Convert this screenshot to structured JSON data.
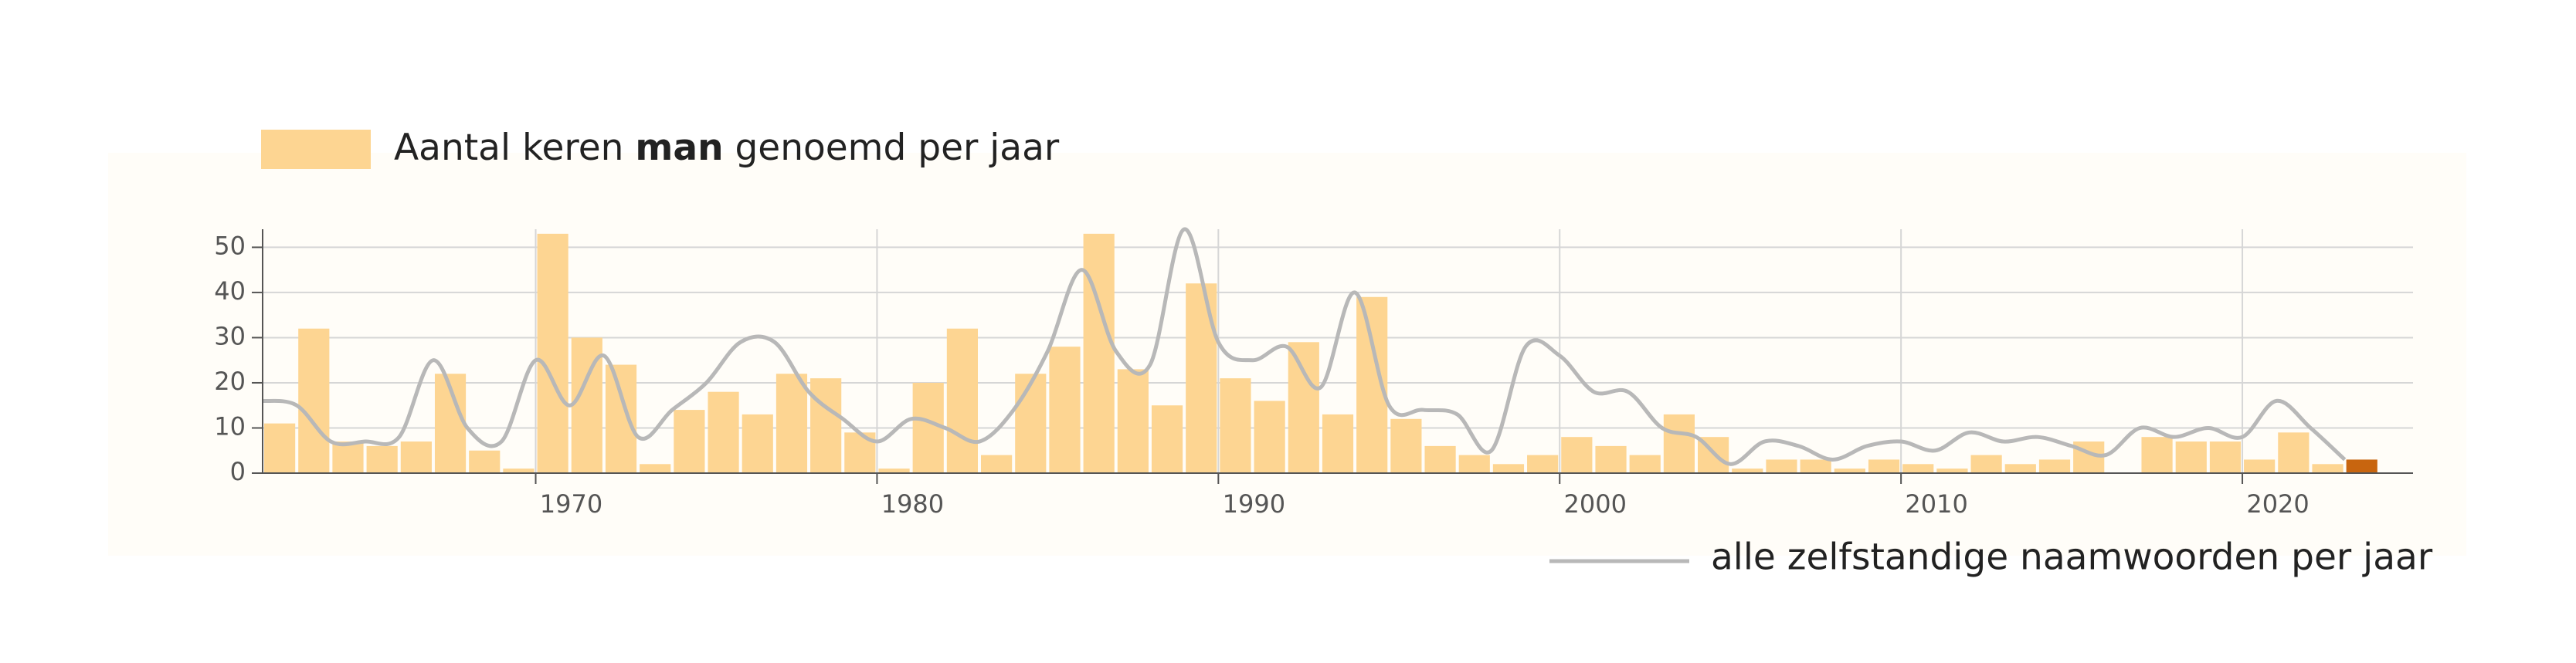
{
  "chart_data": {
    "type": "bar-line",
    "x": [
      1962,
      1963,
      1964,
      1965,
      1966,
      1967,
      1968,
      1969,
      1970,
      1971,
      1972,
      1973,
      1974,
      1975,
      1976,
      1977,
      1978,
      1979,
      1980,
      1981,
      1982,
      1983,
      1984,
      1985,
      1986,
      1987,
      1988,
      1989,
      1990,
      1991,
      1992,
      1993,
      1994,
      1995,
      1996,
      1997,
      1998,
      1999,
      2000,
      2001,
      2002,
      2003,
      2004,
      2005,
      2006,
      2007,
      2008,
      2009,
      2010,
      2011,
      2012,
      2013,
      2014,
      2015,
      2016,
      2017,
      2018,
      2019,
      2020,
      2021,
      2022,
      2023
    ],
    "series": [
      {
        "name": "Aantal keren man genoemd per jaar",
        "name_bold": "man",
        "kind": "bar",
        "color": "#fdd592",
        "colors": [
          "#fdd592",
          "#fdd592",
          "#fdd592",
          "#fdd592",
          "#fdd592",
          "#fdd592",
          "#fdd592",
          "#fdd592",
          "#fdd592",
          "#fdd592",
          "#fdd592",
          "#fdd592",
          "#fdd592",
          "#fdd592",
          "#fdd592",
          "#fdd592",
          "#fdd592",
          "#fdd592",
          "#fdd592",
          "#fdd592",
          "#fdd592",
          "#fdd592",
          "#fdd592",
          "#fdd592",
          "#fdd592",
          "#fdd592",
          "#fdd592",
          "#fdd592",
          "#fdd592",
          "#fdd592",
          "#fdd592",
          "#fdd592",
          "#fdd592",
          "#fdd592",
          "#fdd592",
          "#fdd592",
          "#fdd592",
          "#fdd592",
          "#fdd592",
          "#fdd592",
          "#fdd592",
          "#fdd592",
          "#fdd592",
          "#fdd592",
          "#fdd592",
          "#fdd592",
          "#fdd592",
          "#fdd592",
          "#fdd592",
          "#fdd592",
          "#fdd592",
          "#fdd592",
          "#fdd592",
          "#fdd592",
          "#fdd592",
          "#fdd592",
          "#fdd592",
          "#fdd592",
          "#fdd592",
          "#fdd592",
          "#fdd592",
          "#c8650f"
        ],
        "values": [
          11,
          32,
          7,
          6,
          7,
          22,
          5,
          1,
          53,
          30,
          24,
          2,
          14,
          18,
          13,
          22,
          21,
          9,
          1,
          20,
          32,
          4,
          22,
          28,
          53,
          23,
          15,
          42,
          21,
          16,
          29,
          13,
          39,
          12,
          6,
          4,
          2,
          4,
          8,
          6,
          4,
          13,
          8,
          1,
          3,
          3,
          1,
          3,
          2,
          1,
          4,
          2,
          3,
          7,
          0,
          8,
          7,
          7,
          3,
          9,
          2,
          3
        ]
      },
      {
        "name": "alle zelfstandige naamwoorden per jaar",
        "kind": "line",
        "color": "#b8b8b8",
        "values": [
          16,
          15,
          7,
          7,
          8,
          25,
          10,
          7,
          25,
          15,
          26,
          8,
          14,
          20,
          29,
          29,
          18,
          12,
          7,
          12,
          10,
          7,
          14,
          27,
          45,
          27,
          24,
          54,
          29,
          25,
          28,
          19,
          40,
          15,
          14,
          13,
          5,
          28,
          26,
          18,
          18,
          10,
          8,
          2,
          7,
          6,
          3,
          6,
          7,
          5,
          9,
          7,
          8,
          6,
          4,
          10,
          8,
          10,
          8,
          16,
          10,
          3
        ]
      }
    ],
    "xlim": [
      1962,
      2025
    ],
    "xticks": [
      1970,
      1980,
      1990,
      2000,
      2010,
      2020
    ],
    "ylim": [
      0,
      54
    ],
    "yticks": [
      0,
      10,
      20,
      30,
      40,
      50
    ],
    "grid": true
  }
}
